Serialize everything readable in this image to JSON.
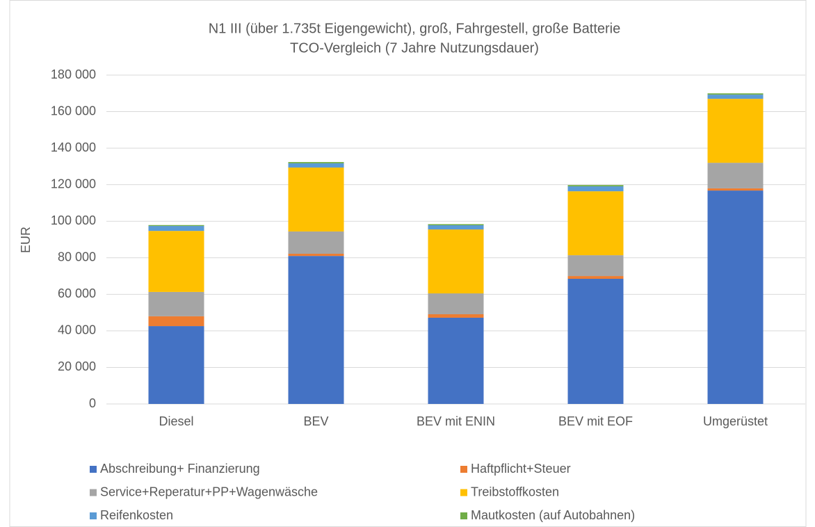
{
  "chart_data": {
    "type": "stacked_bar",
    "title": "N1 III (über 1.735t Eigengewicht), groß, Fahrgestell, große Batterie",
    "subtitle": "TCO-Vergleich (7 Jahre Nutzungsdauer)",
    "y_label": "EUR",
    "categories": [
      "Diesel",
      "BEV",
      "BEV mit ENIN",
      "BEV mit EOF",
      "Umgerüstet"
    ],
    "series": [
      {
        "name": "Abschreibung+ Finanzierung",
        "color": "#4472c4",
        "values": [
          42600,
          81000,
          47200,
          68500,
          116800
        ]
      },
      {
        "name": "Haftpflicht+Steuer",
        "color": "#ed7d31",
        "values": [
          5400,
          1200,
          1900,
          1500,
          1200
        ]
      },
      {
        "name": "Service+Reperatur+PP+Wagenwäsche",
        "color": "#a5a5a5",
        "values": [
          13300,
          12200,
          11400,
          11400,
          14000
        ]
      },
      {
        "name": "Treibstoffkosten",
        "color": "#ffc000",
        "values": [
          33400,
          35000,
          35000,
          35000,
          35000
        ]
      },
      {
        "name": "Reifenkosten",
        "color": "#5b9bd5",
        "values": [
          2700,
          2300,
          2300,
          2700,
          2300
        ]
      },
      {
        "name": "Mautkosten (auf Autobahnen)",
        "color": "#70ad47",
        "values": [
          500,
          700,
          600,
          700,
          700
        ]
      }
    ],
    "ylim": [
      0,
      180000
    ],
    "yticks": [
      0,
      {
        "value": 20000,
        "label": "20 000"
      },
      {
        "value": 40000,
        "label": "40 000"
      },
      {
        "value": 60000,
        "label": "60 000"
      },
      {
        "value": 80000,
        "label": "80 000"
      },
      {
        "value": 100000,
        "label": "100 000"
      },
      {
        "value": 120000,
        "label": "120 000"
      },
      {
        "value": 140000,
        "label": "140 000"
      },
      {
        "value": 160000,
        "label": "160 000"
      },
      {
        "value": 180000,
        "label": "180 000"
      }
    ],
    "grid": true,
    "legend": "bottom"
  }
}
